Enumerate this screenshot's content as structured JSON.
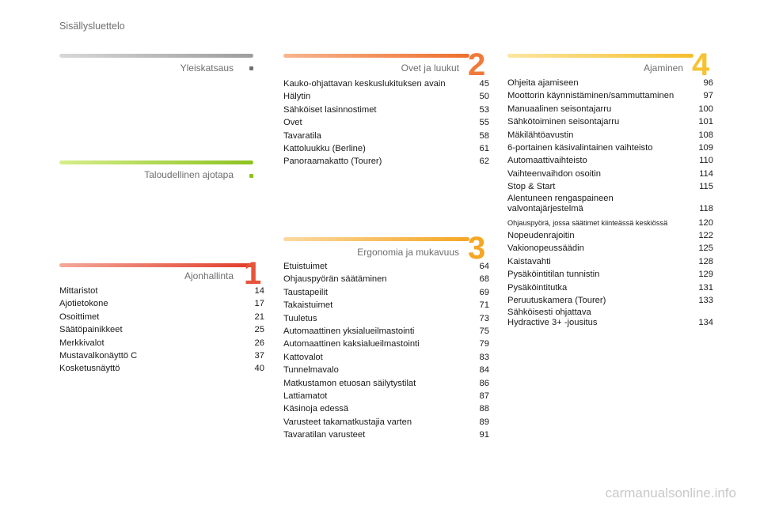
{
  "page_title": "Sisällysluettelo",
  "sections": {
    "yleiskatsaus": {
      "title": "Yleiskatsaus"
    },
    "taloudellinen": {
      "title": "Taloudellinen ajotapa"
    },
    "ajonhallinta": {
      "title": "Ajonhallinta",
      "number": "1",
      "entries": [
        {
          "label": "Mittaristot",
          "page": "14"
        },
        {
          "label": "Ajotietokone",
          "page": "17"
        },
        {
          "label": "Osoittimet",
          "page": "21"
        },
        {
          "label": "Säätöpainikkeet",
          "page": "25"
        },
        {
          "label": "Merkkivalot",
          "page": "26"
        },
        {
          "label": "Mustavalkonäyttö C",
          "page": "37"
        },
        {
          "label": "Kosketusnäyttö",
          "page": "40"
        }
      ]
    },
    "ovet": {
      "title": "Ovet ja luukut",
      "number": "2",
      "entries": [
        {
          "label": "Kauko-ohjattavan keskuslukituksen avain",
          "page": "45"
        },
        {
          "label": "Hälytin",
          "page": "50"
        },
        {
          "label": "Sähköiset lasinnostimet",
          "page": "53"
        },
        {
          "label": "Ovet",
          "page": "55"
        },
        {
          "label": "Tavaratila",
          "page": "58"
        },
        {
          "label": "Kattoluukku (Berline)",
          "page": "61"
        },
        {
          "label": "Panoraamakatto (Tourer)",
          "page": "62"
        }
      ]
    },
    "ergonomia": {
      "title": "Ergonomia ja mukavuus",
      "number": "3",
      "entries": [
        {
          "label": "Etuistuimet",
          "page": "64"
        },
        {
          "label": "Ohjauspyörän säätäminen",
          "page": "68"
        },
        {
          "label": "Taustapeilit",
          "page": "69"
        },
        {
          "label": "Takaistuimet",
          "page": "71"
        },
        {
          "label": "Tuuletus",
          "page": "73"
        },
        {
          "label": "Automaattinen yksialueilmastointi",
          "page": "75"
        },
        {
          "label": "Automaattinen kaksialueilmastointi",
          "page": "79"
        },
        {
          "label": "Kattovalot",
          "page": "83"
        },
        {
          "label": "Tunnelmavalo",
          "page": "84"
        },
        {
          "label": "Matkustamon etuosan säilytystilat",
          "page": "86"
        },
        {
          "label": "Lattiamatot",
          "page": "87"
        },
        {
          "label": "Käsinoja edessä",
          "page": "88"
        },
        {
          "label": "Varusteet takamatkustajia varten",
          "page": "89"
        },
        {
          "label": "Tavaratilan varusteet",
          "page": "91"
        }
      ]
    },
    "ajaminen": {
      "title": "Ajaminen",
      "number": "4",
      "entries": [
        {
          "label": "Ohjeita ajamiseen",
          "page": "96"
        },
        {
          "label": "Moottorin käynnistäminen/sammuttaminen",
          "page": "97"
        },
        {
          "label": "Manuaalinen seisontajarru",
          "page": "100"
        },
        {
          "label": "Sähkötoiminen seisontajarru",
          "page": "101"
        },
        {
          "label": "Mäkilähtöavustin",
          "page": "108"
        },
        {
          "label": "6-portainen käsivalintainen vaihteisto",
          "page": "109"
        },
        {
          "label": "Automaattivaihteisto",
          "page": "110"
        },
        {
          "label": "Vaihteenvaihdon osoitin",
          "page": "114"
        },
        {
          "label": "Stop & Start",
          "page": "115"
        },
        {
          "label": "Alentuneen rengaspaineen\nvalvontajärjestelmä",
          "page": "118"
        },
        {
          "label": "Ohjauspyörä, jossa säätimet kiinteässä keskiössä",
          "page": "120"
        },
        {
          "label": "Nopeudenrajoitin",
          "page": "122"
        },
        {
          "label": "Vakionopeussäädin",
          "page": "125"
        },
        {
          "label": "Kaistavahti",
          "page": "128"
        },
        {
          "label": "Pysäköintitilan tunnistin",
          "page": "129"
        },
        {
          "label": "Pysäköintitutka",
          "page": "131"
        },
        {
          "label": "Peruutuskamera (Tourer)",
          "page": "133"
        },
        {
          "label": "Sähköisesti ohjattava\nHydractive 3+ -jousitus",
          "page": "134"
        }
      ]
    }
  },
  "watermark": "carmanualsonline.info",
  "colors": {
    "grey_bar": "#c4c4c4",
    "green_bar": "#a6cf3c",
    "red_bar": "#e8533b",
    "orange_bar": "#f08a3e",
    "yellow_bar": "#f6b93a",
    "number_1": "#e8533b",
    "number_2": "#f07a3a",
    "number_3": "#f5a623",
    "number_4": "#f7c233"
  }
}
